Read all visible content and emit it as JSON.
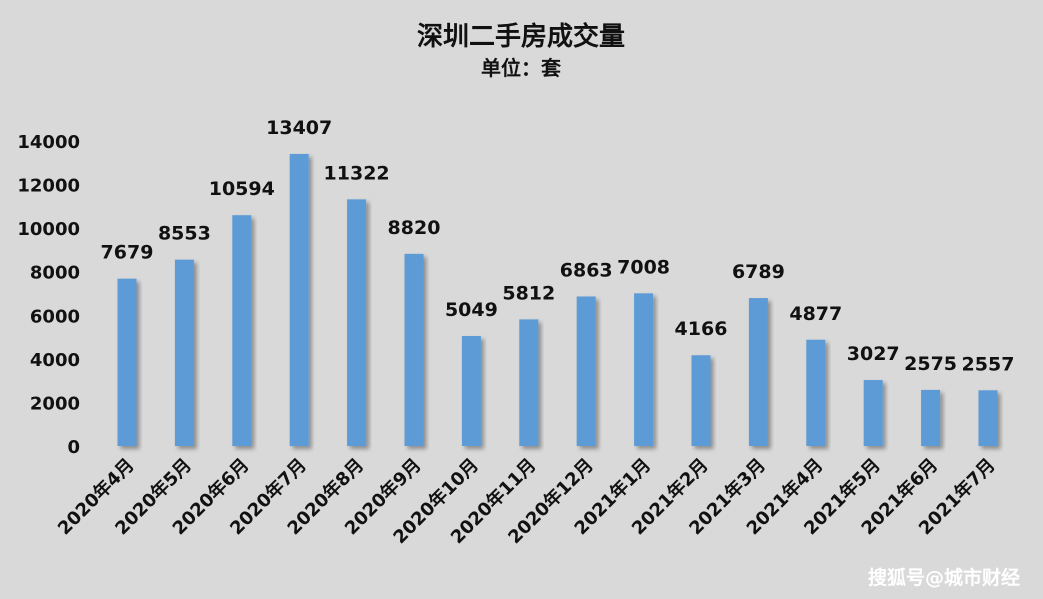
{
  "chart_data": {
    "type": "bar",
    "title": "深圳二手房成交量",
    "subtitle": "单位：套",
    "categories": [
      "2020年4月",
      "2020年5月",
      "2020年6月",
      "2020年7月",
      "2020年8月",
      "2020年9月",
      "2020年10月",
      "2020年11月",
      "2020年12月",
      "2021年1月",
      "2021年2月",
      "2021年3月",
      "2021年4月",
      "2021年5月",
      "2021年6月",
      "2021年7月"
    ],
    "values": [
      7679,
      8553,
      10594,
      13407,
      11322,
      8820,
      5049,
      5812,
      6863,
      7008,
      4166,
      6789,
      4877,
      3027,
      2575,
      2557
    ],
    "ylim": [
      0,
      14000
    ],
    "yticks": [
      0,
      2000,
      4000,
      6000,
      8000,
      10000,
      12000,
      14000
    ],
    "grid": false,
    "legend": "none",
    "bar_color": "#5b9bd5"
  },
  "watermark": "搜狐号@城市财经"
}
